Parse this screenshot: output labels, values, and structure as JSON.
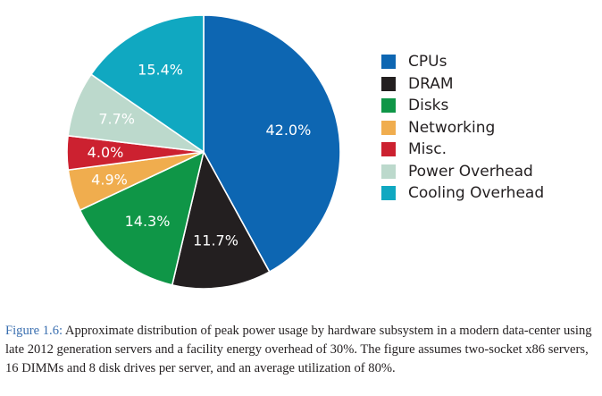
{
  "chart_data": {
    "type": "pie",
    "title": "",
    "start_angle_deg": 0,
    "direction": "clockwise",
    "legend_position": "right",
    "slices": [
      {
        "name": "CPUs",
        "value": 42.0,
        "label": "42.0%",
        "color": "#0d66b2"
      },
      {
        "name": "DRAM",
        "value": 11.7,
        "label": "11.7%",
        "color": "#231f20"
      },
      {
        "name": "Disks",
        "value": 14.3,
        "label": "14.3%",
        "color": "#0f9647"
      },
      {
        "name": "Networking",
        "value": 4.9,
        "label": "4.9%",
        "color": "#f0ad4e"
      },
      {
        "name": "Misc.",
        "value": 4.0,
        "label": "4.0%",
        "color": "#cc2130"
      },
      {
        "name": "Power Overhead",
        "value": 7.7,
        "label": "7.7%",
        "color": "#bcd9cc"
      },
      {
        "name": "Cooling Overhead",
        "value": 15.4,
        "label": "15.4%",
        "color": "#10a8c1"
      }
    ]
  },
  "caption": {
    "label": "Figure 1.6:",
    "text": " Approximate distribution of peak power usage by hardware subsystem in a modern data-center using late 2012 generation servers and a facility energy overhead of 30%. The figure assumes two-socket x86 servers, 16 DIMMs and 8 disk drives per server, and an average utilization of 80%."
  }
}
